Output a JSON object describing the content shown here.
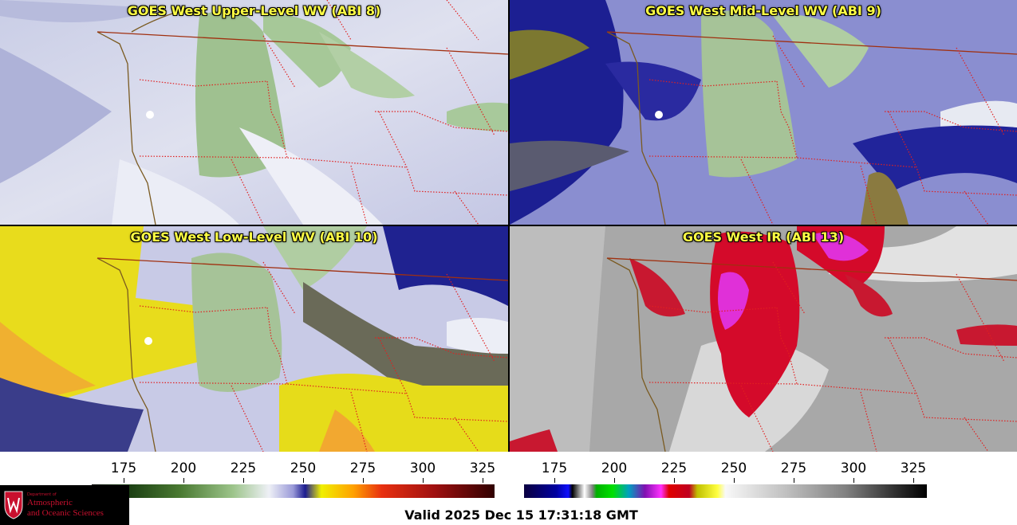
{
  "panels": {
    "upper": "GOES West Upper-Level WV (ABI 8)",
    "mid": "GOES West Mid-Level WV (ABI 9)",
    "low": "GOES West Low-Level WV (ABI 10)",
    "ir": "GOES West IR (ABI 13)"
  },
  "wv_colorbar": {
    "ticks": [
      "175",
      "200",
      "225",
      "250",
      "275",
      "300",
      "325"
    ],
    "colors": [
      "#173a10",
      "#4a7a32",
      "#9cc48a",
      "#eef0f6",
      "#9a9ad8",
      "#1c1c90",
      "#f0f000",
      "#ffa000",
      "#e83010",
      "#a01010",
      "#300000"
    ]
  },
  "ir_colorbar": {
    "ticks": [
      "175",
      "200",
      "225",
      "250",
      "275",
      "300",
      "325"
    ]
  },
  "logo": {
    "dept": "Department of",
    "line1": "Atmospheric",
    "line2": "and Oceanic Sciences"
  },
  "valid_time": "Valid 2025 Dec 15 17:31:18 GMT",
  "colors": {
    "title_text": "#ffff44",
    "state_borders": "#e02020",
    "coastline": "#7a5a20",
    "canada_border": "#a03010"
  }
}
